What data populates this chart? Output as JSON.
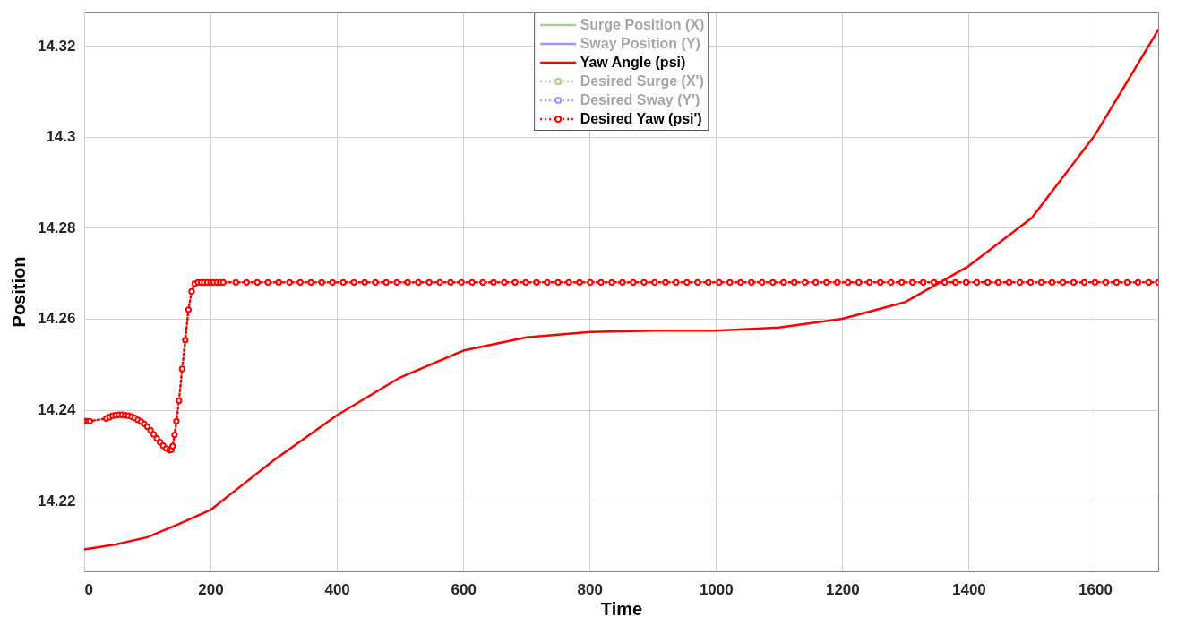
{
  "chart_data": {
    "type": "line",
    "xlabel": "Time",
    "ylabel": "Position",
    "xlim": [
      0,
      1700
    ],
    "xticks": [
      0,
      200,
      400,
      600,
      800,
      1000,
      1200,
      1400,
      1600
    ],
    "ylim": [
      14.2045,
      14.3275
    ],
    "yticks": [
      14.22,
      14.24,
      14.26,
      14.28,
      14.3,
      14.32
    ],
    "grid": true,
    "legend": "top",
    "series": [
      {
        "name": "Surge Position (X)",
        "color": "#a9d08e",
        "line_style": "solid",
        "marker": "none",
        "values": [
          null
        ]
      },
      {
        "name": "Sway Position (Y)",
        "color": "#9999ff",
        "line_style": "solid",
        "marker": "none",
        "values": [
          null
        ]
      },
      {
        "name": "Yaw Angle (psi)",
        "color": "#ff0000",
        "line_style": "solid",
        "marker": "none",
        "x": [
          0,
          50,
          100,
          150,
          200,
          300,
          400,
          500,
          600,
          700,
          800,
          900,
          1000,
          1100,
          1200,
          1300,
          1400,
          1500,
          1600,
          1650,
          1700
        ],
        "values": [
          14.2093,
          14.2104,
          14.212,
          14.2149,
          14.218,
          14.2289,
          14.2388,
          14.2471,
          14.253,
          14.2559,
          14.2571,
          14.2574,
          14.2574,
          14.2581,
          14.26,
          14.2637,
          14.2716,
          14.2822,
          14.3004,
          14.3119,
          14.3235
        ]
      },
      {
        "name": "Desired Surge (X')",
        "color": "#a9d08e",
        "line_style": "dotted",
        "marker": "circle",
        "values": [
          null
        ]
      },
      {
        "name": "Desired Sway (Y')",
        "color": "#9999ff",
        "line_style": "dotted",
        "marker": "circle",
        "values": [
          null
        ]
      },
      {
        "name": "Desired Yaw (psi')",
        "color": "#ff0000",
        "line_style": "dotted",
        "marker": "circle",
        "x": [
          0,
          3,
          6,
          9,
          35,
          40,
          45,
          50,
          55,
          60,
          65,
          70,
          75,
          80,
          85,
          90,
          95,
          100,
          105,
          110,
          115,
          120,
          125,
          130,
          135,
          138,
          140,
          143,
          146,
          150,
          155,
          160,
          165,
          170,
          175,
          180,
          185,
          190,
          195,
          200,
          205,
          210,
          215,
          220,
          240,
          257,
          274,
          291,
          308,
          325,
          342,
          359,
          376,
          393,
          410,
          427,
          444,
          461,
          478,
          495,
          512,
          529,
          546,
          563,
          580,
          597,
          614,
          631,
          648,
          665,
          682,
          699,
          716,
          733,
          750,
          767,
          784,
          801,
          818,
          835,
          852,
          869,
          886,
          903,
          920,
          937,
          954,
          971,
          988,
          1005,
          1022,
          1039,
          1056,
          1073,
          1090,
          1107,
          1124,
          1141,
          1158,
          1175,
          1192,
          1209,
          1226,
          1243,
          1260,
          1277,
          1294,
          1311,
          1328,
          1345,
          1362,
          1379,
          1396,
          1413,
          1430,
          1447,
          1464,
          1481,
          1498,
          1515,
          1532,
          1549,
          1566,
          1583,
          1600,
          1617,
          1634,
          1651,
          1668,
          1685,
          1700
        ],
        "values": [
          14.2375,
          14.2375,
          14.2375,
          14.2375,
          14.2381,
          14.2384,
          14.2387,
          14.2388,
          14.2389,
          14.2389,
          14.2388,
          14.2387,
          14.2385,
          14.2382,
          14.2378,
          14.2374,
          14.2369,
          14.2363,
          14.2355,
          14.2346,
          14.2337,
          14.2329,
          14.2321,
          14.2315,
          14.2311,
          14.2312,
          14.232,
          14.2345,
          14.2375,
          14.242,
          14.249,
          14.2553,
          14.262,
          14.266,
          14.2677,
          14.268,
          14.268,
          14.268,
          14.268,
          14.268,
          14.268,
          14.268,
          14.268,
          14.268,
          14.268,
          14.268,
          14.268,
          14.268,
          14.268,
          14.268,
          14.268,
          14.268,
          14.268,
          14.268,
          14.268,
          14.268,
          14.268,
          14.268,
          14.268,
          14.268,
          14.268,
          14.268,
          14.268,
          14.268,
          14.268,
          14.268,
          14.268,
          14.268,
          14.268,
          14.268,
          14.268,
          14.268,
          14.268,
          14.268,
          14.268,
          14.268,
          14.268,
          14.268,
          14.268,
          14.268,
          14.268,
          14.268,
          14.268,
          14.268,
          14.268,
          14.268,
          14.268,
          14.268,
          14.268,
          14.268,
          14.268,
          14.268,
          14.268,
          14.268,
          14.268,
          14.268,
          14.268,
          14.268,
          14.268,
          14.268,
          14.268,
          14.268,
          14.268,
          14.268,
          14.268,
          14.268,
          14.268,
          14.268,
          14.268,
          14.268,
          14.268,
          14.268,
          14.268,
          14.268,
          14.268,
          14.268,
          14.268,
          14.268,
          14.268,
          14.268,
          14.268,
          14.268,
          14.268,
          14.268,
          14.268,
          14.268,
          14.268,
          14.268,
          14.268,
          14.268,
          14.268
        ]
      }
    ]
  }
}
